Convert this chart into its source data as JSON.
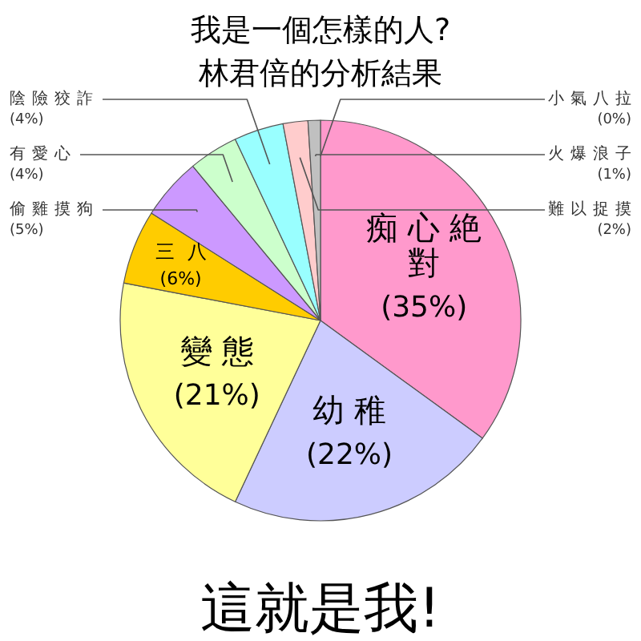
{
  "chart_data": {
    "type": "pie",
    "title": "我是一個怎樣的人?",
    "subtitle": "林君倍的分析結果",
    "categories": [
      "痴心絶對",
      "幼稚",
      "變態",
      "三八",
      "偷雞摸狗",
      "有愛心",
      "陰險狡詐",
      "難以捉摸",
      "火爆浪子",
      "小氣八拉"
    ],
    "values": [
      35,
      22,
      21,
      6,
      5,
      4,
      4,
      2,
      1,
      0
    ],
    "colors": [
      "#ff99cc",
      "#ccccff",
      "#ffff99",
      "#ffcc00",
      "#cc99ff",
      "#ccffcc",
      "#99ffff",
      "#ffcccc",
      "#c0c0c0",
      "#99ccff"
    ],
    "value_labels": [
      "(35%)",
      "(22%)",
      "(21%)",
      "(6%)",
      "(5%)",
      "(4%)",
      "(4%)",
      "(2%)",
      "(1%)",
      "(0%)"
    ],
    "annotations": [
      "這就是我!"
    ]
  }
}
